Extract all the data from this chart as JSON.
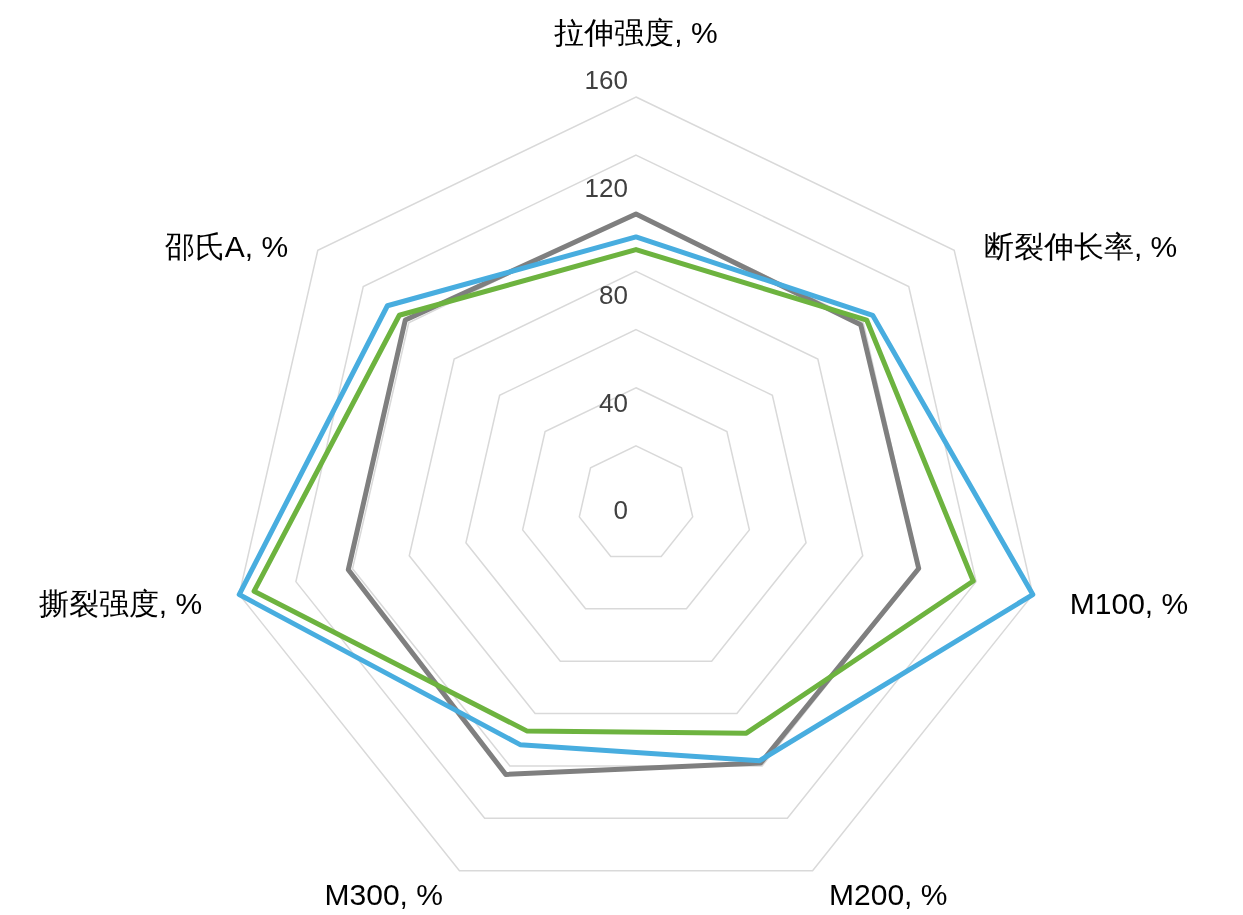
{
  "chart_data": {
    "type": "radar",
    "categories": [
      "拉伸强度, %",
      "断裂伸长率, %",
      "M100, %",
      "M200, %",
      "M300, %",
      "撕裂强度, %",
      "邵氏A, %"
    ],
    "series": [
      {
        "color": "#7f7f7f",
        "values": [
          114,
          113,
          114,
          113,
          118,
          116,
          116
        ]
      },
      {
        "color": "#48addf",
        "values": [
          105,
          119,
          160,
          112,
          105,
          160,
          125
        ]
      },
      {
        "color": "#6db33f",
        "values": [
          100,
          116,
          136,
          100,
          99,
          154,
          119
        ]
      }
    ],
    "ylim": [
      0,
      160
    ],
    "yticks": [
      0,
      40,
      80,
      120,
      160
    ],
    "grid": true
  }
}
